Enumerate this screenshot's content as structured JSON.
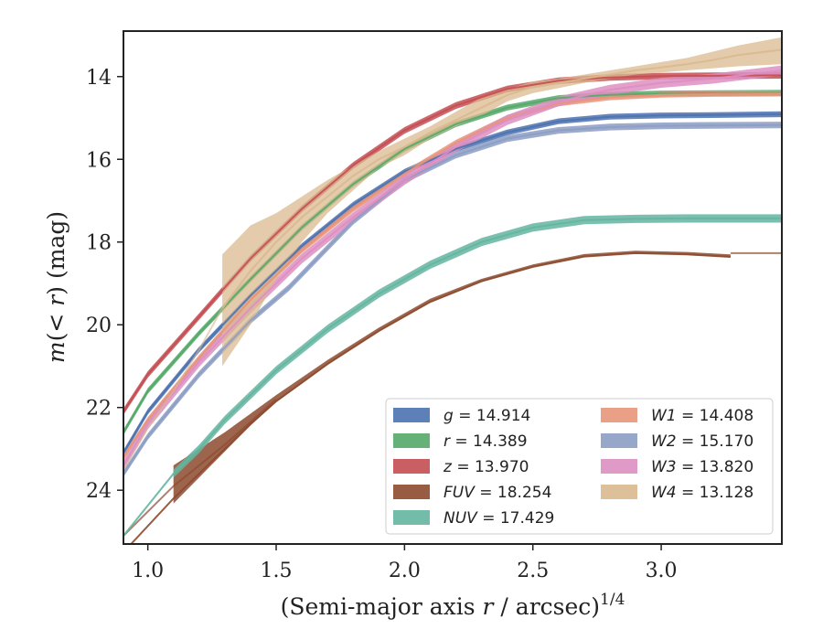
{
  "chart_data": {
    "type": "line",
    "xlabel": {
      "main": "(Semi-major axis ",
      "var": "r",
      "tail": " / arcsec)",
      "sup": "1/4"
    },
    "ylabel": {
      "pre": "m",
      "mid": "(< ",
      "var": "r",
      "post": ") (mag)"
    },
    "xlim": [
      0.905,
      3.47
    ],
    "ylim": [
      25.3,
      12.9
    ],
    "y_inverted": true,
    "xticks": [
      1.0,
      1.5,
      2.0,
      2.5,
      3.0
    ],
    "xtick_labels": [
      "1.0",
      "1.5",
      "2.0",
      "2.5",
      "3.0"
    ],
    "yticks": [
      14,
      16,
      18,
      20,
      22,
      24
    ],
    "ytick_labels": [
      "14",
      "16",
      "18",
      "20",
      "22",
      "24"
    ],
    "grid": false,
    "legend_position": "lower-right",
    "series": [
      {
        "name": "g",
        "value": "14.914",
        "color": "#4c72b0",
        "x": [
          0.905,
          1.0,
          1.2,
          1.4,
          1.6,
          1.8,
          2.0,
          2.2,
          2.4,
          2.6,
          2.8,
          3.0,
          3.2,
          3.47
        ],
        "y": [
          23.1,
          22.1,
          20.6,
          19.3,
          18.1,
          17.1,
          16.3,
          15.75,
          15.35,
          15.08,
          14.97,
          14.94,
          14.93,
          14.91
        ],
        "band": 0.07
      },
      {
        "name": "r",
        "value": "14.389",
        "color": "#55a868",
        "x": [
          0.905,
          1.0,
          1.2,
          1.4,
          1.6,
          1.8,
          2.0,
          2.2,
          2.4,
          2.6,
          2.8,
          3.0,
          3.2,
          3.47
        ],
        "y": [
          22.6,
          21.6,
          20.2,
          18.9,
          17.65,
          16.6,
          15.75,
          15.15,
          14.75,
          14.52,
          14.44,
          14.41,
          14.4,
          14.39
        ],
        "band": 0.07
      },
      {
        "name": "z",
        "value": "13.970",
        "color": "#c44e52",
        "x": [
          0.905,
          1.0,
          1.2,
          1.4,
          1.6,
          1.8,
          2.0,
          2.2,
          2.4,
          2.6,
          2.8,
          3.0,
          3.2,
          3.47
        ],
        "y": [
          22.1,
          21.2,
          19.8,
          18.4,
          17.2,
          16.15,
          15.3,
          14.7,
          14.3,
          14.1,
          14.02,
          13.99,
          13.98,
          13.97
        ],
        "band": 0.08
      },
      {
        "name": "FUV",
        "value": "18.254",
        "color": "#8c4a2e",
        "x": [
          0.905,
          1.1,
          1.2,
          1.3,
          1.4,
          1.5,
          1.7,
          1.9,
          2.1,
          2.3,
          2.5,
          2.7,
          2.9,
          3.1,
          3.27
        ],
        "y": [
          25.5,
          24.2,
          23.6,
          23.0,
          22.4,
          21.85,
          20.95,
          20.15,
          19.45,
          18.95,
          18.6,
          18.35,
          18.27,
          18.3,
          18.36
        ],
        "band_start": [
          0.95,
          0.8,
          0.6,
          0.4,
          0.25,
          0.15,
          0.1,
          0.08,
          0.08,
          0.06,
          0.06,
          0.06,
          0.06,
          0.06,
          0.06
        ],
        "line_extends_to": 3.47,
        "line_start": 0.905
      },
      {
        "name": "NUV",
        "value": "17.429",
        "color": "#64b5a0",
        "x": [
          0.905,
          1.1,
          1.2,
          1.3,
          1.4,
          1.5,
          1.7,
          1.9,
          2.1,
          2.3,
          2.5,
          2.7,
          2.9,
          3.1,
          3.47
        ],
        "y": [
          25.1,
          23.6,
          23.0,
          22.3,
          21.7,
          21.1,
          20.1,
          19.25,
          18.55,
          18.0,
          17.65,
          17.47,
          17.44,
          17.43,
          17.43
        ],
        "band": 0.1
      },
      {
        "name": "W1",
        "value": "14.408",
        "color": "#e8957a",
        "x": [
          0.905,
          1.0,
          1.2,
          1.4,
          1.6,
          1.8,
          2.0,
          2.2,
          2.4,
          2.6,
          2.8,
          3.0,
          3.2,
          3.47
        ],
        "y": [
          23.2,
          22.3,
          20.8,
          19.4,
          18.2,
          17.2,
          16.35,
          15.6,
          15.0,
          14.65,
          14.5,
          14.44,
          14.42,
          14.41
        ],
        "band": 0.07
      },
      {
        "name": "W2",
        "value": "15.170",
        "color": "#8c9dc4",
        "x": [
          0.905,
          1.0,
          1.2,
          1.4,
          1.55,
          1.8,
          2.0,
          2.2,
          2.4,
          2.6,
          2.8,
          3.0,
          3.2,
          3.47
        ],
        "y": [
          23.6,
          22.7,
          21.2,
          19.9,
          19.1,
          17.5,
          16.5,
          15.9,
          15.5,
          15.3,
          15.22,
          15.19,
          15.18,
          15.17
        ],
        "band": 0.08
      },
      {
        "name": "W3",
        "value": "13.820",
        "color": "#dd8fc2",
        "x": [
          0.905,
          1.0,
          1.2,
          1.4,
          1.6,
          1.8,
          2.0,
          2.2,
          2.4,
          2.6,
          2.8,
          3.0,
          3.2,
          3.47
        ],
        "y": [
          23.4,
          22.4,
          20.9,
          19.6,
          18.4,
          17.4,
          16.5,
          15.7,
          15.05,
          14.6,
          14.32,
          14.15,
          14.05,
          13.85
        ],
        "band": 0.12
      },
      {
        "name": "W4",
        "value": "13.128",
        "color": "#d9b98f",
        "x": [
          1.29,
          1.4,
          1.5,
          1.6,
          1.7,
          1.8,
          1.9,
          2.0,
          2.1,
          2.2,
          2.3,
          2.4,
          2.5,
          2.6,
          2.7,
          2.8,
          2.9,
          3.0,
          3.1,
          3.2,
          3.3,
          3.47
        ],
        "y": [
          19.6,
          18.7,
          18.0,
          17.4,
          16.9,
          16.4,
          16.0,
          15.7,
          15.35,
          15.05,
          14.75,
          14.45,
          14.25,
          14.15,
          14.05,
          13.95,
          13.85,
          13.78,
          13.7,
          13.6,
          13.48,
          13.35
        ],
        "band_lo": [
          18.3,
          17.6,
          17.3,
          16.9,
          16.5,
          16.15,
          15.8,
          15.5,
          15.2,
          14.85,
          14.5,
          14.3,
          14.12,
          14.05,
          13.95,
          13.85,
          13.75,
          13.65,
          13.55,
          13.4,
          13.25,
          13.05
        ],
        "band_hi": [
          21.0,
          20.0,
          18.9,
          18.0,
          17.3,
          16.75,
          16.2,
          15.9,
          15.5,
          15.2,
          14.95,
          14.6,
          14.4,
          14.28,
          14.15,
          14.05,
          13.95,
          13.9,
          13.85,
          13.8,
          13.75,
          13.7
        ],
        "faint_line_to": 0.905,
        "faint_y_start": 23.5
      }
    ]
  }
}
